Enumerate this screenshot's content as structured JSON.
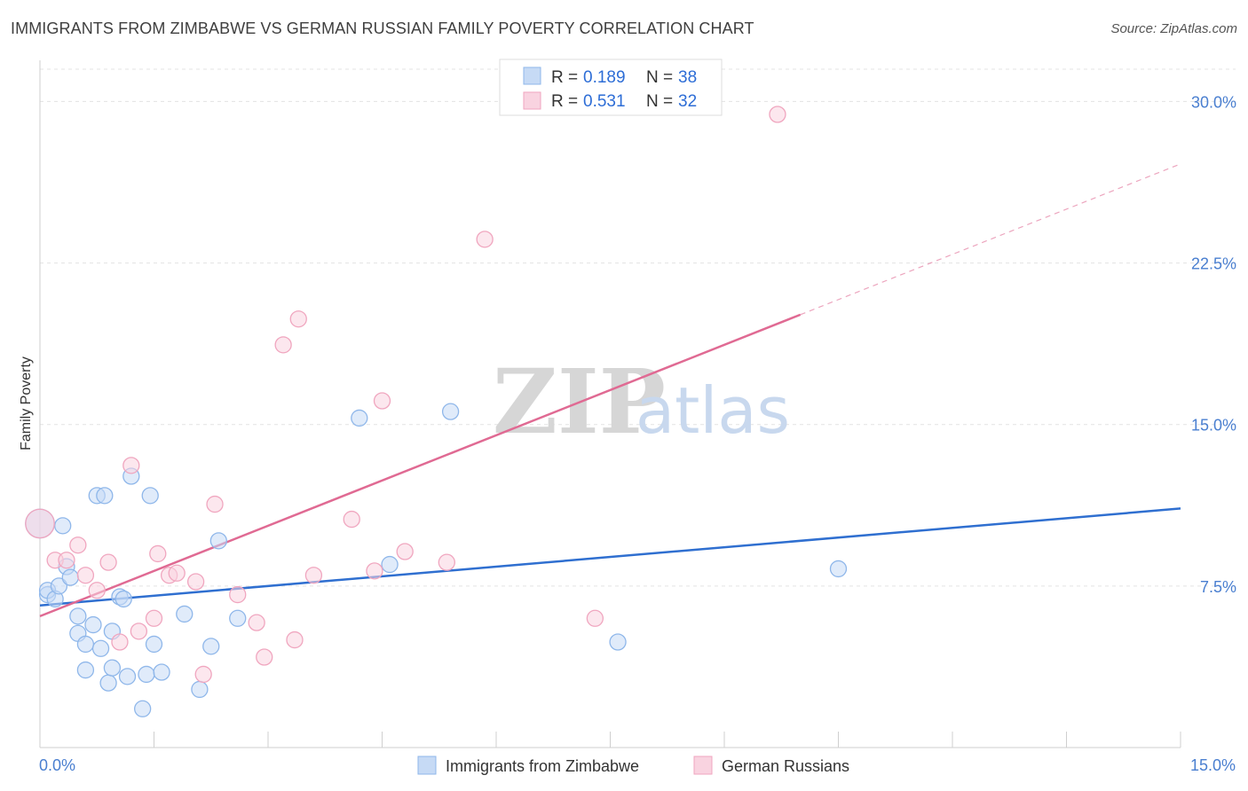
{
  "header": {
    "title": "IMMIGRANTS FROM ZIMBABWE VS GERMAN RUSSIAN FAMILY POVERTY CORRELATION CHART",
    "source": "Source: ZipAtlas.com"
  },
  "watermark": {
    "part1": "ZIP",
    "part2": "atlas"
  },
  "colors": {
    "blue": "#8fb7ea",
    "blue_fill": "#c6daf5",
    "blue_line": "#2f6fd0",
    "pink": "#f0a6bf",
    "pink_fill": "#f9d3e0",
    "pink_line": "#e06a93",
    "tick_text": "#4a7fd0"
  },
  "legend": {
    "blue": {
      "r_label": "R = ",
      "r_value": "0.189",
      "n_label": "N = ",
      "n_value": "38"
    },
    "pink": {
      "r_label": "R = ",
      "r_value": "0.531",
      "n_label": "N = ",
      "n_value": "32"
    }
  },
  "chart_data": {
    "type": "scatter",
    "title": "IMMIGRANTS FROM ZIMBABWE VS GERMAN RUSSIAN FAMILY POVERTY CORRELATION CHART",
    "xlabel": "",
    "ylabel": "Family Poverty",
    "xlim": [
      0,
      15
    ],
    "ylim": [
      0,
      31.5
    ],
    "x_tick_labels": [
      "0.0%",
      "15.0%"
    ],
    "y_ticks": [
      7.5,
      15.0,
      22.5,
      30.0
    ],
    "y_tick_labels": [
      "7.5%",
      "15.0%",
      "22.5%",
      "30.0%"
    ],
    "grid": true,
    "legend_position": "top-center",
    "series": [
      {
        "name": "Immigrants from Zimbabwe",
        "color": "blue",
        "trend": {
          "x": [
            0,
            15
          ],
          "y": [
            6.6,
            11.1
          ]
        },
        "points": [
          [
            0.0,
            10.4,
            1.8
          ],
          [
            0.1,
            7.1,
            1
          ],
          [
            0.1,
            7.3,
            1
          ],
          [
            0.2,
            6.9,
            1
          ],
          [
            0.25,
            7.5,
            1
          ],
          [
            0.3,
            10.3,
            1
          ],
          [
            0.35,
            8.4,
            1
          ],
          [
            0.4,
            7.9,
            1
          ],
          [
            0.5,
            5.3,
            1
          ],
          [
            0.5,
            6.1,
            1
          ],
          [
            0.6,
            4.8,
            1
          ],
          [
            0.6,
            3.6,
            1
          ],
          [
            0.7,
            5.7,
            1
          ],
          [
            0.75,
            11.7,
            1
          ],
          [
            0.8,
            4.6,
            1
          ],
          [
            0.85,
            11.7,
            1
          ],
          [
            0.9,
            3.0,
            1
          ],
          [
            0.95,
            5.4,
            1
          ],
          [
            0.95,
            3.7,
            1
          ],
          [
            1.05,
            7.0,
            1
          ],
          [
            1.1,
            6.9,
            1
          ],
          [
            1.15,
            3.3,
            1
          ],
          [
            1.2,
            12.6,
            1
          ],
          [
            1.35,
            1.8,
            1
          ],
          [
            1.4,
            3.4,
            1
          ],
          [
            1.45,
            11.7,
            1
          ],
          [
            1.5,
            4.8,
            1
          ],
          [
            1.6,
            3.5,
            1
          ],
          [
            1.9,
            6.2,
            1
          ],
          [
            2.1,
            2.7,
            1
          ],
          [
            2.25,
            4.7,
            1
          ],
          [
            2.35,
            9.6,
            1
          ],
          [
            2.6,
            6.0,
            1
          ],
          [
            4.2,
            15.3,
            1
          ],
          [
            4.6,
            8.5,
            1
          ],
          [
            5.4,
            15.6,
            1
          ],
          [
            7.6,
            4.9,
            1
          ],
          [
            10.5,
            8.3,
            1
          ]
        ]
      },
      {
        "name": "German Russians",
        "color": "pink",
        "trend": {
          "x": [
            0,
            10.0
          ],
          "y": [
            6.1,
            20.1
          ]
        },
        "trend_extension": {
          "x": [
            10.0,
            15
          ],
          "y": [
            20.1,
            27.1
          ]
        },
        "points": [
          [
            0.0,
            10.4,
            1.8
          ],
          [
            0.2,
            8.7,
            1
          ],
          [
            0.35,
            8.7,
            1
          ],
          [
            0.5,
            9.4,
            1
          ],
          [
            0.6,
            8.0,
            1
          ],
          [
            0.75,
            7.3,
            1
          ],
          [
            0.9,
            8.6,
            1
          ],
          [
            1.05,
            4.9,
            1
          ],
          [
            1.2,
            13.1,
            1
          ],
          [
            1.3,
            5.4,
            1
          ],
          [
            1.5,
            6.0,
            1
          ],
          [
            1.55,
            9.0,
            1
          ],
          [
            1.7,
            8.0,
            1
          ],
          [
            1.8,
            8.1,
            1
          ],
          [
            2.05,
            7.7,
            1
          ],
          [
            2.15,
            3.4,
            1
          ],
          [
            2.3,
            11.3,
            1
          ],
          [
            2.6,
            7.1,
            1
          ],
          [
            2.85,
            5.8,
            1
          ],
          [
            2.95,
            4.2,
            1
          ],
          [
            3.2,
            18.7,
            1
          ],
          [
            3.35,
            5.0,
            1
          ],
          [
            3.4,
            19.9,
            1
          ],
          [
            3.6,
            8.0,
            1
          ],
          [
            4.1,
            10.6,
            1
          ],
          [
            4.4,
            8.2,
            1
          ],
          [
            4.5,
            16.1,
            1
          ],
          [
            4.8,
            9.1,
            1
          ],
          [
            5.35,
            8.6,
            1
          ],
          [
            5.85,
            23.6,
            1
          ],
          [
            7.3,
            6.0,
            1
          ],
          [
            9.7,
            29.4,
            1
          ]
        ]
      }
    ]
  }
}
